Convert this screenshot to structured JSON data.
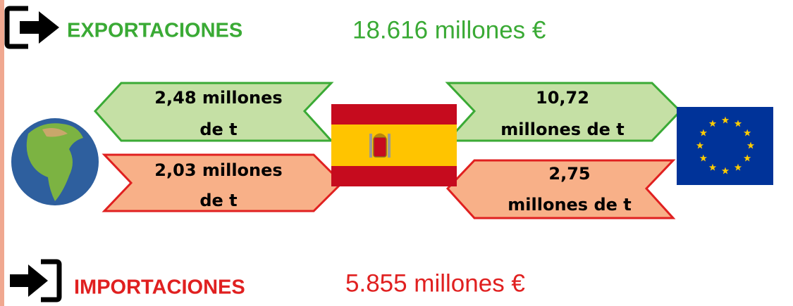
{
  "exports": {
    "label": "EXPORTACIONES",
    "total": "18.616 millones €"
  },
  "imports": {
    "label": "IMPORTACIONES",
    "total": "5.855 millones €"
  },
  "flows": [
    {
      "lines": [
        "2,48 millones",
        "de t"
      ]
    },
    {
      "lines": [
        "2,03 millones",
        "de t"
      ]
    },
    {
      "lines": [
        "10,72",
        "millones de t"
      ]
    },
    {
      "lines": [
        "2,75",
        "millones de t"
      ]
    }
  ]
}
